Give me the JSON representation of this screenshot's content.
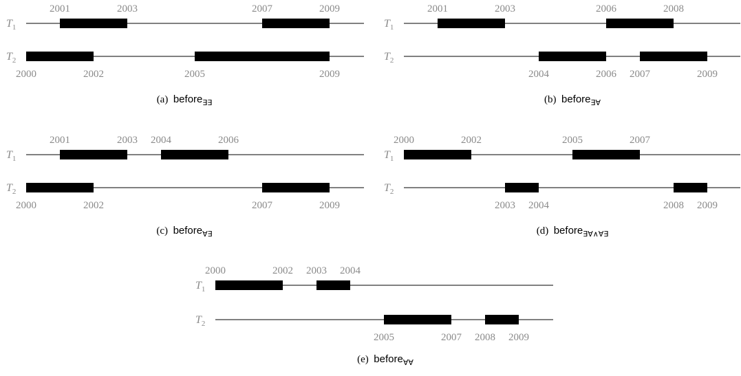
{
  "panels": [
    {
      "id": "a",
      "caption_label": "(a)",
      "caption_word": "before",
      "caption_sub": "∃∃",
      "rows": [
        {
          "label": "T",
          "sub": "1",
          "intervals": [
            [
              2001,
              2003
            ],
            [
              2007,
              2009
            ]
          ],
          "label_pos": "above",
          "ticks": [
            2001,
            2003,
            2007,
            2009
          ]
        },
        {
          "label": "T",
          "sub": "2",
          "intervals": [
            [
              2000,
              2002
            ],
            [
              2005,
              2009
            ]
          ],
          "label_pos": "below",
          "ticks": [
            2000,
            2002,
            2005,
            2009
          ]
        }
      ]
    },
    {
      "id": "b",
      "caption_label": "(b)",
      "caption_word": "before",
      "caption_sub": "∃∀",
      "rows": [
        {
          "label": "T",
          "sub": "1",
          "intervals": [
            [
              2001,
              2003
            ],
            [
              2006,
              2008
            ]
          ],
          "label_pos": "above",
          "ticks": [
            2001,
            2003,
            2006,
            2008
          ]
        },
        {
          "label": "T",
          "sub": "2",
          "intervals": [
            [
              2004,
              2006
            ],
            [
              2007,
              2009
            ]
          ],
          "label_pos": "below",
          "ticks": [
            2004,
            2006,
            2007,
            2009
          ]
        }
      ]
    },
    {
      "id": "c",
      "caption_label": "(c)",
      "caption_word": "before",
      "caption_sub": "∀∃",
      "rows": [
        {
          "label": "T",
          "sub": "1",
          "intervals": [
            [
              2001,
              2003
            ],
            [
              2004,
              2006
            ]
          ],
          "label_pos": "above",
          "ticks": [
            2001,
            2003,
            2004,
            2006
          ]
        },
        {
          "label": "T",
          "sub": "2",
          "intervals": [
            [
              2000,
              2002
            ],
            [
              2007,
              2009
            ]
          ],
          "label_pos": "below",
          "ticks": [
            2000,
            2002,
            2007,
            2009
          ]
        }
      ]
    },
    {
      "id": "d",
      "caption_label": "(d)",
      "caption_word": "before",
      "caption_sub": "∃∀∧∀∃",
      "rows": [
        {
          "label": "T",
          "sub": "1",
          "intervals": [
            [
              2000,
              2002
            ],
            [
              2005,
              2007
            ]
          ],
          "label_pos": "above",
          "ticks": [
            2000,
            2002,
            2005,
            2007
          ]
        },
        {
          "label": "T",
          "sub": "2",
          "intervals": [
            [
              2003,
              2004
            ],
            [
              2008,
              2009
            ]
          ],
          "label_pos": "below",
          "ticks": [
            2003,
            2004,
            2008,
            2009
          ]
        }
      ]
    },
    {
      "id": "e",
      "caption_label": "(e)",
      "caption_word": "before",
      "caption_sub": "∀∀",
      "rows": [
        {
          "label": "T",
          "sub": "1",
          "intervals": [
            [
              2000,
              2002
            ],
            [
              2003,
              2004
            ]
          ],
          "label_pos": "above",
          "ticks": [
            2000,
            2002,
            2003,
            2004
          ]
        },
        {
          "label": "T",
          "sub": "2",
          "intervals": [
            [
              2005,
              2007
            ],
            [
              2008,
              2009
            ]
          ],
          "label_pos": "below",
          "ticks": [
            2005,
            2007,
            2008,
            2009
          ]
        }
      ]
    }
  ]
}
